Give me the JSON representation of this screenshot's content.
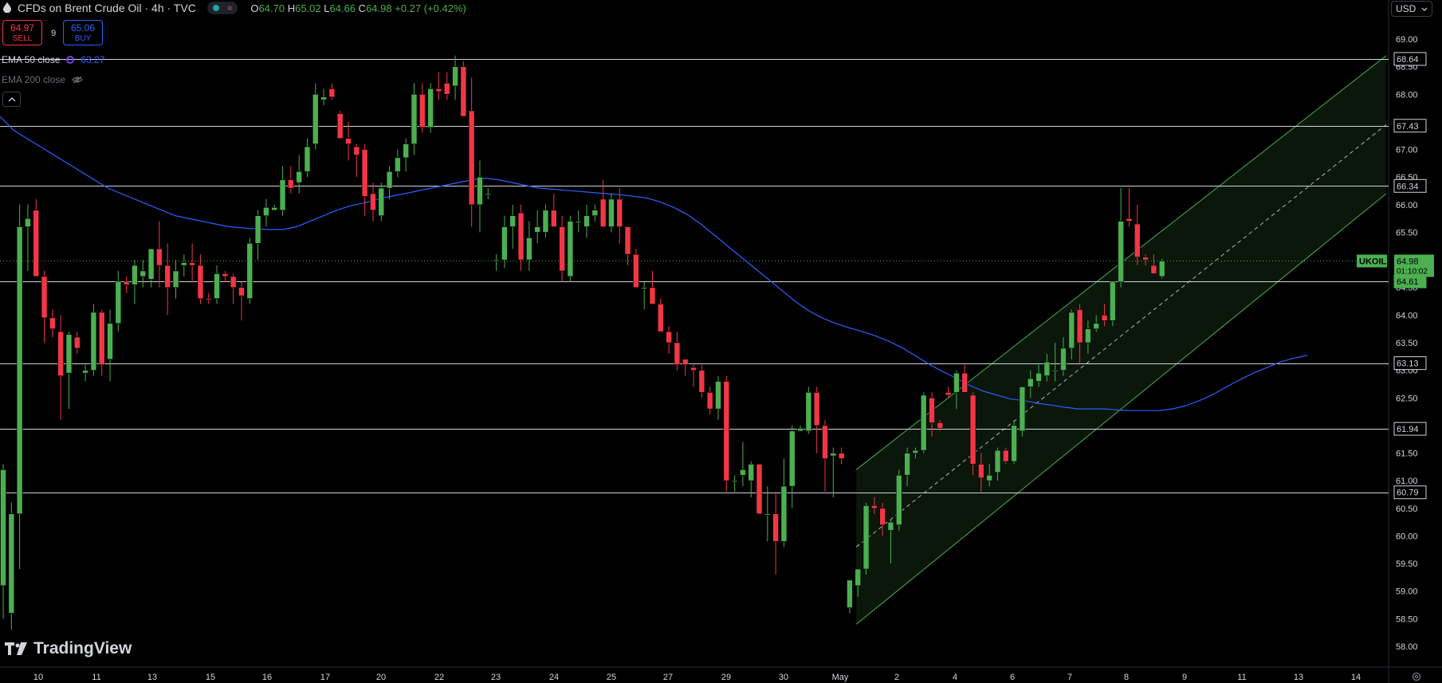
{
  "header": {
    "title": "CFDs on Brent Crude Oil · 4h · TVC",
    "ohlc": {
      "o_label": "O",
      "o": "64.70",
      "h_label": "H",
      "h": "65.02",
      "l_label": "L",
      "l": "64.66",
      "c_label": "C",
      "c": "64.98",
      "change": "+0.27 (+0.42%)"
    }
  },
  "trade": {
    "sell_price": "64.97",
    "sell_label": "SELL",
    "buy_price": "65.06",
    "buy_label": "BUY",
    "spread": "9"
  },
  "indicators": {
    "ema50_label": "EMA 50 close",
    "ema50_value": "63.27",
    "ema200_label": "EMA 200 close"
  },
  "currency": "USD",
  "branding": "TradingView",
  "colors": {
    "up": "#4caf50",
    "down": "#f23645",
    "ema": "#2962ff",
    "channel": "#4caf50",
    "hline": "#d1d4dc"
  },
  "chart_data": {
    "type": "candlestick",
    "symbol": "UKOIL",
    "timeframe": "4h",
    "current_price": "64.98",
    "countdown": "01:10:02",
    "x_tick_labels": [
      "10",
      "11",
      "13",
      "15",
      "16",
      "17",
      "20",
      "22",
      "23",
      "24",
      "25",
      "27",
      "29",
      "30",
      "May",
      "2",
      "4",
      "6",
      "7",
      "8",
      "9",
      "11",
      "13",
      "14"
    ],
    "y_tick_labels": [
      "69.00",
      "68.50",
      "68.00",
      "67.50",
      "67.00",
      "66.50",
      "66.00",
      "65.50",
      "65.00",
      "64.50",
      "64.00",
      "63.50",
      "63.00",
      "62.50",
      "62.00",
      "61.50",
      "61.00",
      "60.50",
      "60.00",
      "59.50",
      "59.00",
      "58.50",
      "58.00"
    ],
    "ylim": [
      57.8,
      69.3
    ],
    "horizontal_levels": [
      "68.64",
      "67.43",
      "66.34",
      "64.61",
      "63.13",
      "61.94",
      "60.79"
    ],
    "candles": [
      {
        "o": 59.1,
        "h": 61.3,
        "l": 58.5,
        "c": 61.2
      },
      {
        "o": 58.6,
        "h": 60.6,
        "l": 58.3,
        "c": 60.4
      },
      {
        "o": 60.4,
        "h": 66.0,
        "l": 59.4,
        "c": 65.6
      },
      {
        "o": 65.6,
        "h": 66.0,
        "l": 64.8,
        "c": 65.75
      },
      {
        "o": 65.9,
        "h": 66.1,
        "l": 64.8,
        "c": 64.7
      },
      {
        "o": 64.7,
        "h": 64.8,
        "l": 63.5,
        "c": 63.95
      },
      {
        "o": 63.95,
        "h": 64.1,
        "l": 63.6,
        "c": 63.75
      },
      {
        "o": 63.7,
        "h": 64.0,
        "l": 62.1,
        "c": 62.9
      },
      {
        "o": 62.95,
        "h": 63.7,
        "l": 62.3,
        "c": 63.65
      },
      {
        "o": 63.6,
        "h": 63.7,
        "l": 63.3,
        "c": 63.4
      },
      {
        "o": 62.95,
        "h": 63.1,
        "l": 62.8,
        "c": 63.0
      },
      {
        "o": 63.0,
        "h": 64.2,
        "l": 62.9,
        "c": 64.05
      },
      {
        "o": 64.05,
        "h": 64.1,
        "l": 62.9,
        "c": 63.1
      },
      {
        "o": 63.2,
        "h": 64.1,
        "l": 62.8,
        "c": 63.85
      },
      {
        "o": 63.85,
        "h": 64.8,
        "l": 63.7,
        "c": 64.6
      },
      {
        "o": 64.6,
        "h": 64.7,
        "l": 64.4,
        "c": 64.55
      },
      {
        "o": 64.55,
        "h": 65.0,
        "l": 64.2,
        "c": 64.9
      },
      {
        "o": 64.7,
        "h": 65.0,
        "l": 64.5,
        "c": 64.8
      },
      {
        "o": 64.65,
        "h": 65.2,
        "l": 64.5,
        "c": 65.2
      },
      {
        "o": 65.2,
        "h": 65.7,
        "l": 64.5,
        "c": 64.9
      },
      {
        "o": 64.9,
        "h": 65.3,
        "l": 64.0,
        "c": 64.5
      },
      {
        "o": 64.5,
        "h": 65.0,
        "l": 64.3,
        "c": 64.8
      },
      {
        "o": 64.9,
        "h": 65.1,
        "l": 64.7,
        "c": 64.95
      },
      {
        "o": 64.95,
        "h": 65.3,
        "l": 64.6,
        "c": 64.9
      },
      {
        "o": 64.9,
        "h": 65.1,
        "l": 64.2,
        "c": 64.3
      },
      {
        "o": 64.3,
        "h": 64.4,
        "l": 64.2,
        "c": 64.28
      },
      {
        "o": 64.3,
        "h": 64.9,
        "l": 64.2,
        "c": 64.75
      },
      {
        "o": 64.75,
        "h": 64.8,
        "l": 64.6,
        "c": 64.7
      },
      {
        "o": 64.7,
        "h": 64.75,
        "l": 64.2,
        "c": 64.5
      },
      {
        "o": 64.5,
        "h": 64.6,
        "l": 63.9,
        "c": 64.35
      },
      {
        "o": 64.3,
        "h": 65.4,
        "l": 64.2,
        "c": 65.3
      },
      {
        "o": 65.3,
        "h": 65.9,
        "l": 65.0,
        "c": 65.8
      },
      {
        "o": 65.8,
        "h": 66.1,
        "l": 65.6,
        "c": 65.95
      },
      {
        "o": 65.9,
        "h": 66.0,
        "l": 65.9,
        "c": 65.95
      },
      {
        "o": 65.9,
        "h": 66.7,
        "l": 65.8,
        "c": 66.45
      },
      {
        "o": 66.45,
        "h": 66.7,
        "l": 66.2,
        "c": 66.3
      },
      {
        "o": 66.4,
        "h": 66.9,
        "l": 66.2,
        "c": 66.6
      },
      {
        "o": 66.6,
        "h": 67.2,
        "l": 66.5,
        "c": 67.05
      },
      {
        "o": 67.1,
        "h": 68.2,
        "l": 67.0,
        "c": 68.0
      },
      {
        "o": 67.9,
        "h": 68.1,
        "l": 67.8,
        "c": 67.95
      },
      {
        "o": 68.1,
        "h": 68.2,
        "l": 67.9,
        "c": 67.95
      },
      {
        "o": 67.65,
        "h": 67.7,
        "l": 67.3,
        "c": 67.2
      },
      {
        "o": 67.2,
        "h": 67.5,
        "l": 66.8,
        "c": 67.1
      },
      {
        "o": 67.05,
        "h": 67.1,
        "l": 66.5,
        "c": 66.9
      },
      {
        "o": 67.0,
        "h": 67.1,
        "l": 65.8,
        "c": 66.15
      },
      {
        "o": 66.2,
        "h": 66.4,
        "l": 65.7,
        "c": 65.9
      },
      {
        "o": 65.8,
        "h": 66.4,
        "l": 65.7,
        "c": 66.3
      },
      {
        "o": 66.3,
        "h": 66.7,
        "l": 66.1,
        "c": 66.6
      },
      {
        "o": 66.6,
        "h": 67.0,
        "l": 66.5,
        "c": 66.85
      },
      {
        "o": 66.85,
        "h": 67.2,
        "l": 66.6,
        "c": 67.1
      },
      {
        "o": 67.1,
        "h": 68.2,
        "l": 66.9,
        "c": 68.0
      },
      {
        "o": 68.0,
        "h": 68.2,
        "l": 67.3,
        "c": 67.4
      },
      {
        "o": 67.4,
        "h": 68.2,
        "l": 67.3,
        "c": 68.1
      },
      {
        "o": 68.1,
        "h": 68.4,
        "l": 67.9,
        "c": 68.05
      },
      {
        "o": 68.2,
        "h": 68.4,
        "l": 67.9,
        "c": 68.0
      },
      {
        "o": 68.15,
        "h": 68.7,
        "l": 67.9,
        "c": 68.5
      },
      {
        "o": 68.5,
        "h": 68.6,
        "l": 67.6,
        "c": 67.6
      },
      {
        "o": 67.7,
        "h": 68.3,
        "l": 65.6,
        "c": 66.0
      },
      {
        "o": 66.0,
        "h": 66.8,
        "l": 65.5,
        "c": 66.5
      },
      {
        "o": 66.2,
        "h": 66.3,
        "l": 66.1,
        "c": 66.2
      },
      {
        "o": 65.0,
        "h": 65.1,
        "l": 64.8,
        "c": 65.0
      },
      {
        "o": 65.0,
        "h": 65.8,
        "l": 64.85,
        "c": 65.6
      },
      {
        "o": 65.6,
        "h": 66.0,
        "l": 65.2,
        "c": 65.8
      },
      {
        "o": 65.85,
        "h": 66.0,
        "l": 64.8,
        "c": 65.0
      },
      {
        "o": 65.0,
        "h": 65.7,
        "l": 64.8,
        "c": 65.4
      },
      {
        "o": 65.5,
        "h": 65.9,
        "l": 65.3,
        "c": 65.6
      },
      {
        "o": 65.5,
        "h": 66.0,
        "l": 65.4,
        "c": 65.9
      },
      {
        "o": 65.9,
        "h": 66.2,
        "l": 65.6,
        "c": 65.6
      },
      {
        "o": 65.6,
        "h": 65.8,
        "l": 64.6,
        "c": 64.8
      },
      {
        "o": 64.7,
        "h": 65.8,
        "l": 64.6,
        "c": 65.7
      },
      {
        "o": 65.7,
        "h": 65.9,
        "l": 65.5,
        "c": 65.7
      },
      {
        "o": 65.6,
        "h": 66.0,
        "l": 65.4,
        "c": 65.8
      },
      {
        "o": 65.8,
        "h": 66.0,
        "l": 65.7,
        "c": 65.9
      },
      {
        "o": 66.1,
        "h": 66.45,
        "l": 65.6,
        "c": 65.6
      },
      {
        "o": 65.6,
        "h": 66.2,
        "l": 65.5,
        "c": 66.1
      },
      {
        "o": 66.1,
        "h": 66.3,
        "l": 65.3,
        "c": 65.6
      },
      {
        "o": 65.6,
        "h": 65.6,
        "l": 64.9,
        "c": 65.1
      },
      {
        "o": 65.1,
        "h": 65.2,
        "l": 64.5,
        "c": 64.5
      },
      {
        "o": 64.5,
        "h": 64.6,
        "l": 64.1,
        "c": 64.5
      },
      {
        "o": 64.5,
        "h": 64.8,
        "l": 64.2,
        "c": 64.2
      },
      {
        "o": 64.2,
        "h": 64.3,
        "l": 63.7,
        "c": 63.7
      },
      {
        "o": 63.7,
        "h": 63.8,
        "l": 63.3,
        "c": 63.5
      },
      {
        "o": 63.5,
        "h": 63.7,
        "l": 63.0,
        "c": 63.1
      },
      {
        "o": 63.2,
        "h": 63.2,
        "l": 62.9,
        "c": 63.1
      },
      {
        "o": 63.05,
        "h": 63.1,
        "l": 62.7,
        "c": 63.0
      },
      {
        "o": 63.0,
        "h": 63.1,
        "l": 62.5,
        "c": 62.6
      },
      {
        "o": 62.6,
        "h": 62.7,
        "l": 62.2,
        "c": 62.3
      },
      {
        "o": 62.3,
        "h": 62.9,
        "l": 62.1,
        "c": 62.8
      },
      {
        "o": 62.8,
        "h": 62.9,
        "l": 60.8,
        "c": 61.0
      },
      {
        "o": 61.0,
        "h": 61.1,
        "l": 60.8,
        "c": 61.0
      },
      {
        "o": 61.1,
        "h": 61.7,
        "l": 60.9,
        "c": 61.2
      },
      {
        "o": 61.0,
        "h": 61.35,
        "l": 60.7,
        "c": 61.3
      },
      {
        "o": 61.3,
        "h": 61.3,
        "l": 60.4,
        "c": 60.4
      },
      {
        "o": 60.4,
        "h": 60.9,
        "l": 59.9,
        "c": 60.4
      },
      {
        "o": 60.4,
        "h": 60.8,
        "l": 59.3,
        "c": 59.9
      },
      {
        "o": 59.9,
        "h": 61.4,
        "l": 59.8,
        "c": 60.9
      },
      {
        "o": 60.9,
        "h": 62.0,
        "l": 60.5,
        "c": 61.9
      },
      {
        "o": 61.9,
        "h": 62.0,
        "l": 61.9,
        "c": 61.95
      },
      {
        "o": 61.9,
        "h": 62.7,
        "l": 61.85,
        "c": 62.6
      },
      {
        "o": 62.6,
        "h": 62.7,
        "l": 61.5,
        "c": 62.0
      },
      {
        "o": 62.0,
        "h": 62.1,
        "l": 60.8,
        "c": 61.4
      },
      {
        "o": 61.45,
        "h": 61.6,
        "l": 60.7,
        "c": 61.5
      },
      {
        "o": 61.5,
        "h": 61.6,
        "l": 61.3,
        "c": 61.4
      },
      {
        "o": 58.7,
        "h": 59.1,
        "l": 58.6,
        "c": 59.2
      },
      {
        "o": 59.1,
        "h": 59.4,
        "l": 58.9,
        "c": 59.4
      },
      {
        "o": 59.4,
        "h": 60.6,
        "l": 59.3,
        "c": 60.55
      },
      {
        "o": 60.55,
        "h": 60.7,
        "l": 60.4,
        "c": 60.5
      },
      {
        "o": 60.5,
        "h": 60.6,
        "l": 60.0,
        "c": 60.2
      },
      {
        "o": 60.1,
        "h": 60.3,
        "l": 59.5,
        "c": 60.25
      },
      {
        "o": 60.2,
        "h": 61.2,
        "l": 60.1,
        "c": 61.1
      },
      {
        "o": 61.1,
        "h": 61.6,
        "l": 60.9,
        "c": 61.5
      },
      {
        "o": 61.5,
        "h": 61.6,
        "l": 61.4,
        "c": 61.55
      },
      {
        "o": 61.55,
        "h": 62.6,
        "l": 61.5,
        "c": 62.55
      },
      {
        "o": 62.5,
        "h": 62.6,
        "l": 61.8,
        "c": 62.05
      },
      {
        "o": 62.05,
        "h": 62.1,
        "l": 61.9,
        "c": 61.95
      },
      {
        "o": 62.6,
        "h": 62.7,
        "l": 62.5,
        "c": 62.55
      },
      {
        "o": 62.6,
        "h": 63.0,
        "l": 62.3,
        "c": 62.95
      },
      {
        "o": 62.95,
        "h": 63.1,
        "l": 62.6,
        "c": 62.6
      },
      {
        "o": 62.55,
        "h": 62.6,
        "l": 61.1,
        "c": 61.3
      },
      {
        "o": 61.3,
        "h": 61.5,
        "l": 60.8,
        "c": 61.05
      },
      {
        "o": 61.0,
        "h": 61.3,
        "l": 60.9,
        "c": 61.1
      },
      {
        "o": 61.15,
        "h": 61.6,
        "l": 61.0,
        "c": 61.55
      },
      {
        "o": 61.55,
        "h": 61.6,
        "l": 61.3,
        "c": 61.35
      },
      {
        "o": 61.35,
        "h": 62.1,
        "l": 61.3,
        "c": 62.0
      },
      {
        "o": 61.9,
        "h": 62.7,
        "l": 61.8,
        "c": 62.7
      },
      {
        "o": 62.7,
        "h": 63.0,
        "l": 62.5,
        "c": 62.85
      },
      {
        "o": 62.8,
        "h": 63.1,
        "l": 62.7,
        "c": 62.95
      },
      {
        "o": 62.9,
        "h": 63.3,
        "l": 62.8,
        "c": 63.15
      },
      {
        "o": 63.0,
        "h": 63.5,
        "l": 62.8,
        "c": 63.0
      },
      {
        "o": 63.0,
        "h": 63.6,
        "l": 62.9,
        "c": 63.4
      },
      {
        "o": 63.4,
        "h": 64.1,
        "l": 63.2,
        "c": 64.05
      },
      {
        "o": 64.1,
        "h": 64.2,
        "l": 63.1,
        "c": 63.5
      },
      {
        "o": 63.5,
        "h": 63.9,
        "l": 63.3,
        "c": 63.75
      },
      {
        "o": 63.75,
        "h": 64.0,
        "l": 63.7,
        "c": 63.85
      },
      {
        "o": 64.0,
        "h": 64.2,
        "l": 63.8,
        "c": 63.9
      },
      {
        "o": 63.9,
        "h": 64.6,
        "l": 63.8,
        "c": 64.6
      },
      {
        "o": 64.6,
        "h": 66.3,
        "l": 64.5,
        "c": 65.7
      },
      {
        "o": 65.75,
        "h": 66.3,
        "l": 65.6,
        "c": 65.7
      },
      {
        "o": 65.65,
        "h": 66.0,
        "l": 64.9,
        "c": 65.05
      },
      {
        "o": 65.05,
        "h": 65.1,
        "l": 64.9,
        "c": 65.0
      },
      {
        "o": 64.9,
        "h": 65.1,
        "l": 64.75,
        "c": 64.75
      },
      {
        "o": 64.7,
        "h": 65.02,
        "l": 64.66,
        "c": 64.98
      }
    ],
    "ema50": [
      67.6,
      67.35,
      67.2,
      67.05,
      66.9,
      66.75,
      66.6,
      66.45,
      66.3,
      66.2,
      66.1,
      66.0,
      65.9,
      65.8,
      65.75,
      65.7,
      65.65,
      65.6,
      65.58,
      65.56,
      65.55,
      65.55,
      65.6,
      65.7,
      65.8,
      65.9,
      65.98,
      66.03,
      66.1,
      66.15,
      66.2,
      66.25,
      66.3,
      66.35,
      66.4,
      66.45,
      66.48,
      66.45,
      66.4,
      66.35,
      66.3,
      66.28,
      66.26,
      66.24,
      66.22,
      66.2,
      66.18,
      66.15,
      66.12,
      66.05,
      65.95,
      65.82,
      65.65,
      65.45,
      65.25,
      65.05,
      64.85,
      64.65,
      64.45,
      64.25,
      64.08,
      63.95,
      63.85,
      63.77,
      63.7,
      63.62,
      63.52,
      63.4,
      63.25,
      63.1,
      62.97,
      62.85,
      62.72,
      62.62,
      62.55,
      62.48,
      62.45,
      62.4,
      62.37,
      62.33,
      62.3,
      62.3,
      62.3,
      62.28,
      62.27,
      62.27,
      62.27,
      62.3,
      62.36,
      62.45,
      62.56,
      62.7,
      62.83,
      62.95,
      63.05,
      63.15,
      63.22,
      63.27
    ]
  }
}
